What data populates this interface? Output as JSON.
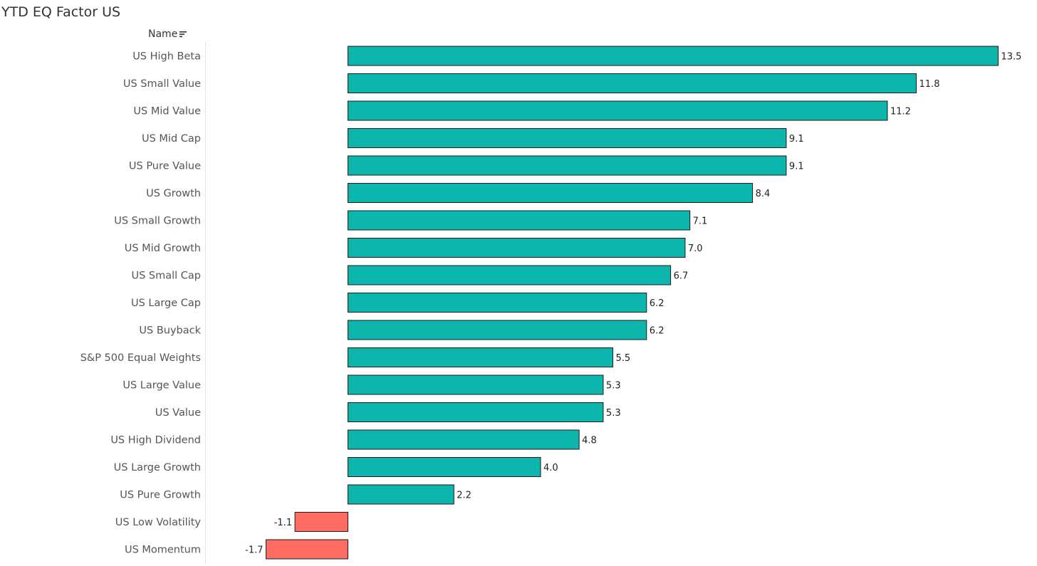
{
  "title": "YTD EQ Factor US",
  "column_header": "Name",
  "sort_icon": "sort-descending-icon",
  "colors": {
    "positive": "#0db6ac",
    "negative": "#fd6b62",
    "bar_stroke": "#1c1c1c",
    "separator": "#e6e6e6"
  },
  "chart_data": {
    "type": "bar",
    "orientation": "horizontal",
    "title": "YTD EQ Factor US",
    "xlabel": "",
    "ylabel": "Name",
    "xlim": [
      -1.7,
      13.5
    ],
    "grid": false,
    "categories": [
      "US High Beta",
      "US Small Value",
      "US Mid Value",
      "US Mid Cap",
      "US Pure Value",
      "US Growth",
      "US Small Growth",
      "US Mid Growth",
      "US Small Cap",
      "US Large Cap",
      "US Buyback",
      "S&P 500 Equal Weights",
      "US Large Value",
      "US Value",
      "US High Dividend",
      "US Large Growth",
      "US Pure Growth",
      "US Low Volatility",
      "US Momentum"
    ],
    "values": [
      13.5,
      11.8,
      11.2,
      9.1,
      9.1,
      8.4,
      7.1,
      7.0,
      6.7,
      6.2,
      6.2,
      5.5,
      5.3,
      5.3,
      4.8,
      4.0,
      2.2,
      -1.1,
      -1.7
    ],
    "value_labels": [
      "13.5",
      "11.8",
      "11.2",
      "9.1",
      "9.1",
      "8.4",
      "7.1",
      "7.0",
      "6.7",
      "6.2",
      "6.2",
      "5.5",
      "5.3",
      "5.3",
      "4.8",
      "4.0",
      "2.2",
      "-1.1",
      "-1.7"
    ]
  }
}
